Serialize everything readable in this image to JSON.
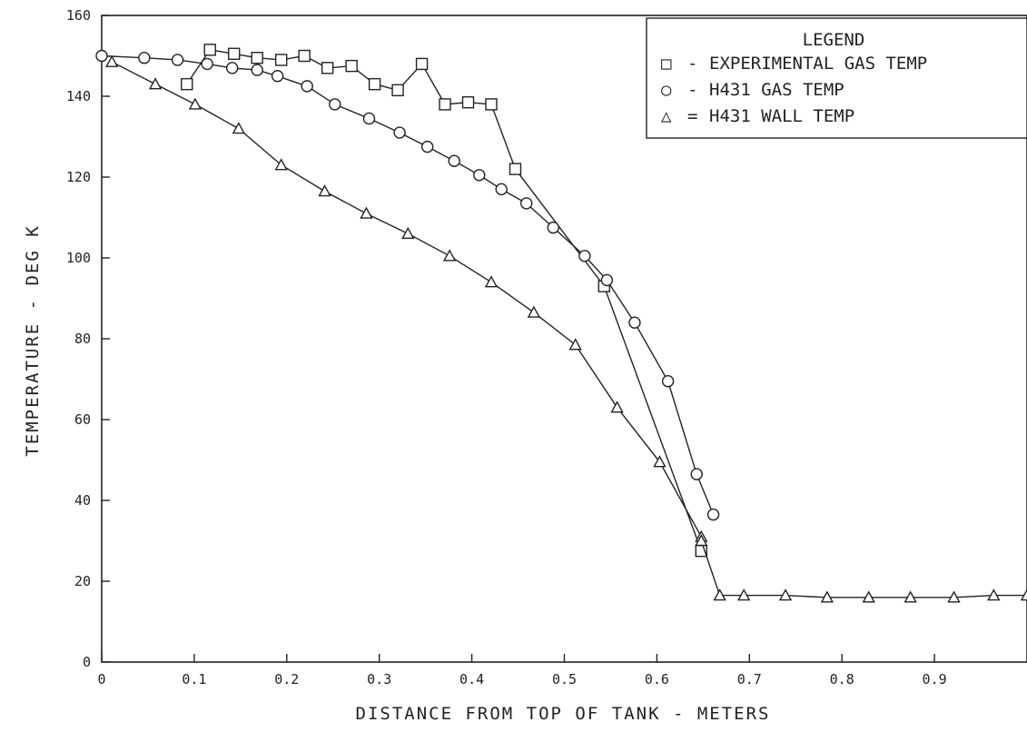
{
  "chart_data": {
    "type": "line",
    "title": "",
    "xlabel": "DISTANCE FROM TOP OF TANK - METERS",
    "ylabel": "TEMPERATURE - DEG K",
    "xlim": [
      0,
      1.0
    ],
    "ylim": [
      0,
      160
    ],
    "x_ticks": [
      "0",
      "0.1",
      "0.2",
      "0.3",
      "0.4",
      "0.5",
      "0.6",
      "0.7",
      "0.8",
      "0.9"
    ],
    "x_tick_values": [
      0,
      0.1,
      0.2,
      0.3,
      0.4,
      0.5,
      0.6,
      0.7,
      0.8,
      0.9
    ],
    "y_ticks": [
      "0",
      "20",
      "40",
      "60",
      "80",
      "100",
      "120",
      "140",
      "160"
    ],
    "y_tick_values": [
      0,
      20,
      40,
      60,
      80,
      100,
      120,
      140,
      160
    ],
    "grid": false,
    "legend": {
      "title": "LEGEND",
      "placement": "top-right",
      "entries": [
        {
          "symbol": "□",
          "sep": "-",
          "label": "EXPERIMENTAL GAS TEMP",
          "marker": "square"
        },
        {
          "symbol": "○",
          "sep": "-",
          "label": "H431 GAS TEMP",
          "marker": "circle"
        },
        {
          "symbol": "△",
          "sep": "=",
          "label": "H431 WALL TEMP",
          "marker": "triangle"
        }
      ]
    },
    "series": [
      {
        "name": "EXPERIMENTAL GAS TEMP",
        "marker": "square",
        "points": [
          [
            0.092,
            143
          ],
          [
            0.117,
            151.5
          ],
          [
            0.143,
            150.5
          ],
          [
            0.168,
            149.5
          ],
          [
            0.194,
            149
          ],
          [
            0.219,
            150
          ],
          [
            0.244,
            147
          ],
          [
            0.27,
            147.5
          ],
          [
            0.295,
            143
          ],
          [
            0.32,
            141.5
          ],
          [
            0.346,
            148
          ],
          [
            0.371,
            138
          ],
          [
            0.396,
            138.5
          ],
          [
            0.421,
            138
          ],
          [
            0.447,
            122
          ],
          [
            0.543,
            93
          ],
          [
            0.648,
            27.5
          ]
        ]
      },
      {
        "name": "H431 GAS TEMP",
        "marker": "circle",
        "points": [
          [
            0.0,
            150
          ],
          [
            0.046,
            149.5
          ],
          [
            0.082,
            149
          ],
          [
            0.114,
            148
          ],
          [
            0.141,
            147
          ],
          [
            0.168,
            146.5
          ],
          [
            0.19,
            145
          ],
          [
            0.222,
            142.5
          ],
          [
            0.252,
            138
          ],
          [
            0.289,
            134.5
          ],
          [
            0.322,
            131
          ],
          [
            0.352,
            127.5
          ],
          [
            0.381,
            124
          ],
          [
            0.408,
            120.5
          ],
          [
            0.432,
            117
          ],
          [
            0.459,
            113.5
          ],
          [
            0.488,
            107.5
          ],
          [
            0.522,
            100.5
          ],
          [
            0.546,
            94.5
          ],
          [
            0.576,
            84
          ],
          [
            0.612,
            69.5
          ],
          [
            0.643,
            46.5
          ],
          [
            0.661,
            36.5
          ]
        ]
      },
      {
        "name": "H431 WALL TEMP",
        "marker": "triangle",
        "points": [
          [
            0.011,
            148.5
          ],
          [
            0.058,
            143
          ],
          [
            0.101,
            138
          ],
          [
            0.148,
            132
          ],
          [
            0.194,
            123
          ],
          [
            0.241,
            116.5
          ],
          [
            0.286,
            111
          ],
          [
            0.331,
            106
          ],
          [
            0.376,
            100.5
          ],
          [
            0.421,
            94
          ],
          [
            0.467,
            86.5
          ],
          [
            0.512,
            78.5
          ],
          [
            0.557,
            63
          ],
          [
            0.603,
            49.5
          ],
          [
            0.648,
            31
          ],
          [
            0.648,
            30
          ],
          [
            0.668,
            16.5
          ],
          [
            0.694,
            16.5
          ],
          [
            0.739,
            16.5
          ],
          [
            0.784,
            16
          ],
          [
            0.829,
            16
          ],
          [
            0.874,
            16
          ],
          [
            0.921,
            16
          ],
          [
            0.964,
            16.5
          ],
          [
            1.0,
            16.5
          ]
        ]
      }
    ]
  }
}
